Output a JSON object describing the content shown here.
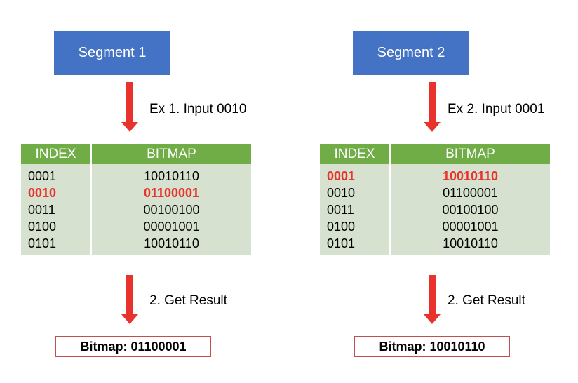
{
  "left": {
    "segment_label": "Segment 1",
    "step1_label": "Ex 1. Input 0010",
    "step2_label": "2. Get Result",
    "header_index": "INDEX",
    "header_bitmap": "BITMAP",
    "rows": [
      {
        "index": "0001",
        "bitmap": "10010110",
        "highlighted": false
      },
      {
        "index": "0010",
        "bitmap": "01100001",
        "highlighted": true
      },
      {
        "index": "0011",
        "bitmap": "00100100",
        "highlighted": false
      },
      {
        "index": "0100",
        "bitmap": "00001001",
        "highlighted": false
      },
      {
        "index": "0101",
        "bitmap": "10010110",
        "highlighted": false
      }
    ],
    "result_label": "Bitmap: 01100001"
  },
  "right": {
    "segment_label": "Segment 2",
    "step1_label": "Ex 2. Input 0001",
    "step2_label": "2. Get Result",
    "header_index": "INDEX",
    "header_bitmap": "BITMAP",
    "rows": [
      {
        "index": "0001",
        "bitmap": "10010110",
        "highlighted": true
      },
      {
        "index": "0010",
        "bitmap": "01100001",
        "highlighted": false
      },
      {
        "index": "0011",
        "bitmap": "00100100",
        "highlighted": false
      },
      {
        "index": "0100",
        "bitmap": "00001001",
        "highlighted": false
      },
      {
        "index": "0101",
        "bitmap": "10010110",
        "highlighted": false
      }
    ],
    "result_label": "Bitmap: 10010110"
  },
  "colors": {
    "segment_fill": "#4472C4",
    "header_fill": "#70AD47",
    "table_fill": "#D6E2CF",
    "arrow": "#E8322B",
    "highlight_text": "#E8322B",
    "result_border": "#C0504D"
  }
}
